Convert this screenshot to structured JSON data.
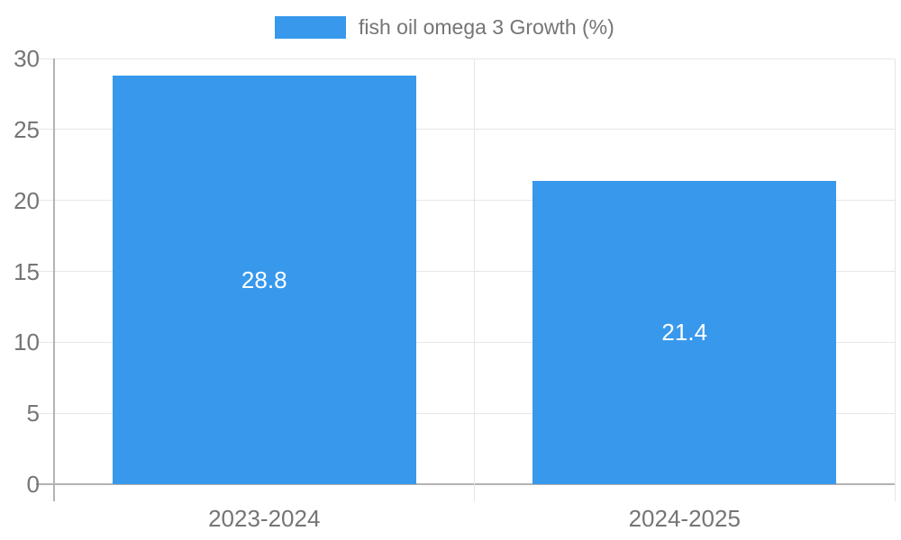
{
  "legend": {
    "label": "fish oil omega 3 Growth (%)"
  },
  "chart_data": {
    "type": "bar",
    "title": "fish oil omega 3 Growth (%)",
    "categories": [
      "2023-2024",
      "2024-2025"
    ],
    "values": [
      28.8,
      21.4
    ],
    "value_labels": [
      "28.8",
      "21.4"
    ],
    "xlabel": "",
    "ylabel": "",
    "ylim": [
      0,
      30
    ],
    "yticks": [
      0,
      5,
      10,
      15,
      20,
      25,
      30
    ],
    "grid": true,
    "legend_position": "top-center",
    "colors": {
      "bar": "#3899ec",
      "grid_line": "#e6e6e6",
      "axis_line": "#b3b3b3",
      "tick_text": "#757575",
      "legend_text": "#757575",
      "value_text": "#ffffff",
      "background": "#ffffff"
    }
  }
}
